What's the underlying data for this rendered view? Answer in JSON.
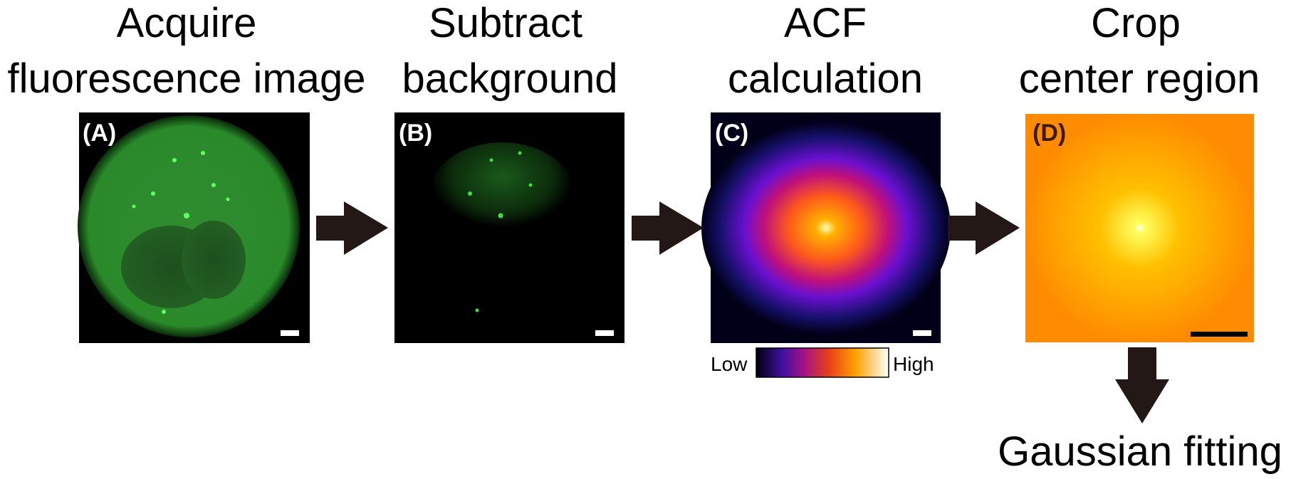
{
  "steps": [
    {
      "title": [
        "Acquire",
        "fluorescence image"
      ],
      "label": "(A)"
    },
    {
      "title": [
        "Subtract",
        "background"
      ],
      "label": "(B)"
    },
    {
      "title": [
        "ACF",
        "calculation"
      ],
      "label": "(C)"
    },
    {
      "title": [
        "Crop",
        "center region"
      ],
      "label": "(D)"
    }
  ],
  "colorbar": {
    "low": "Low",
    "high": "High"
  },
  "final": "Gaussian fitting"
}
